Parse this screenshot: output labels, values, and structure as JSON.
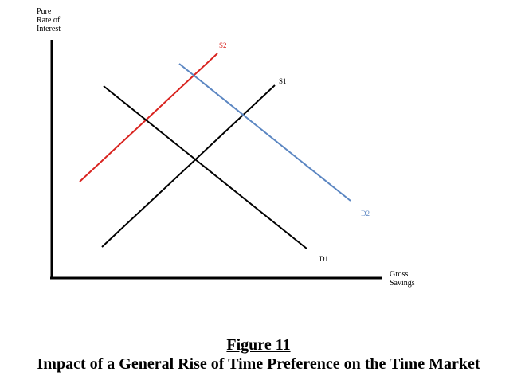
{
  "diagram": {
    "y_axis_label": "Pure\nRate of\nInterest",
    "x_axis_label": "Gross\nSavings",
    "curves": {
      "s1": {
        "label": "S1",
        "color": "#000000"
      },
      "s2": {
        "label": "S2",
        "color": "#d9231f"
      },
      "d1": {
        "label": "D1",
        "color": "#000000"
      },
      "d2": {
        "label": "D2",
        "color": "#5b86c2"
      }
    }
  },
  "caption": {
    "figure_number": "Figure 11",
    "title": "Impact of a General Rise of Time Preference on the Time Market"
  }
}
